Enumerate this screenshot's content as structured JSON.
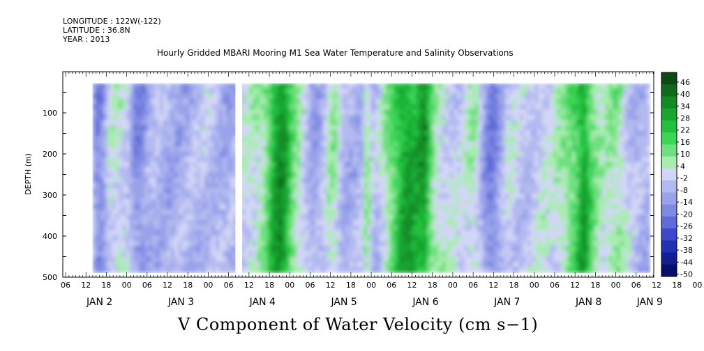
{
  "header": {
    "longitude": "LONGITUDE : 122W(-122)",
    "latitude": "LATITUDE : 36.8N",
    "year": "YEAR : 2013",
    "title": "Hourly Gridded MBARI Mooring M1 Sea Water Temperature and Salinity Observations",
    "variable_title": "V Component of Water Velocity (cm s−1)"
  },
  "chart_data": {
    "type": "heatmap",
    "title": "Hourly Gridded MBARI Mooring M1 Sea Water Temperature and Salinity Observations",
    "ylabel": "DEPTH (m)",
    "xlabel": "",
    "ylim": [
      500,
      0
    ],
    "y_ticks": [
      100,
      200,
      300,
      400,
      500
    ],
    "x_hour_ticks": [
      "06",
      "12",
      "18",
      "00",
      "06",
      "12",
      "18",
      "00",
      "06",
      "12",
      "18",
      "00",
      "06",
      "12",
      "18",
      "00",
      "06",
      "12",
      "18",
      "00",
      "06",
      "12",
      "18",
      "00",
      "06",
      "12",
      "18",
      "00",
      "06",
      "12",
      "18",
      "00",
      "06"
    ],
    "x_date_labels": [
      {
        "text": "JAN  2",
        "hours": 10
      },
      {
        "text": "JAN  3",
        "hours": 34
      },
      {
        "text": "JAN  4",
        "hours": 58
      },
      {
        "text": "JAN  5",
        "hours": 82
      },
      {
        "text": "JAN  6",
        "hours": 106
      },
      {
        "text": "JAN  7",
        "hours": 130
      },
      {
        "text": "JAN  8",
        "hours": 154
      },
      {
        "text": "JAN  9",
        "hours": 172
      }
    ],
    "x_range_hours": [
      0,
      174
    ],
    "colorbar": {
      "labels": [
        46,
        40,
        34,
        28,
        22,
        16,
        10,
        4,
        -2,
        -8,
        -14,
        -20,
        -26,
        -32,
        -38,
        -44,
        -50
      ],
      "colors": [
        "#0c4a14",
        "#0f6a1c",
        "#138a26",
        "#18a530",
        "#22c03c",
        "#3ed45a",
        "#6fe07f",
        "#a8ecb0",
        "#d2d6f6",
        "#b3baf0",
        "#9aa3ea",
        "#7f89e2",
        "#5f6bd8",
        "#3d49cc",
        "#2230b6",
        "#111e94",
        "#070f6a"
      ],
      "range": [
        -50,
        46
      ]
    },
    "data_domain_hours": [
      8,
      172
    ],
    "data_domain_depth_m": [
      28,
      488
    ],
    "gaps_hours": [
      [
        50,
        52
      ]
    ]
  }
}
